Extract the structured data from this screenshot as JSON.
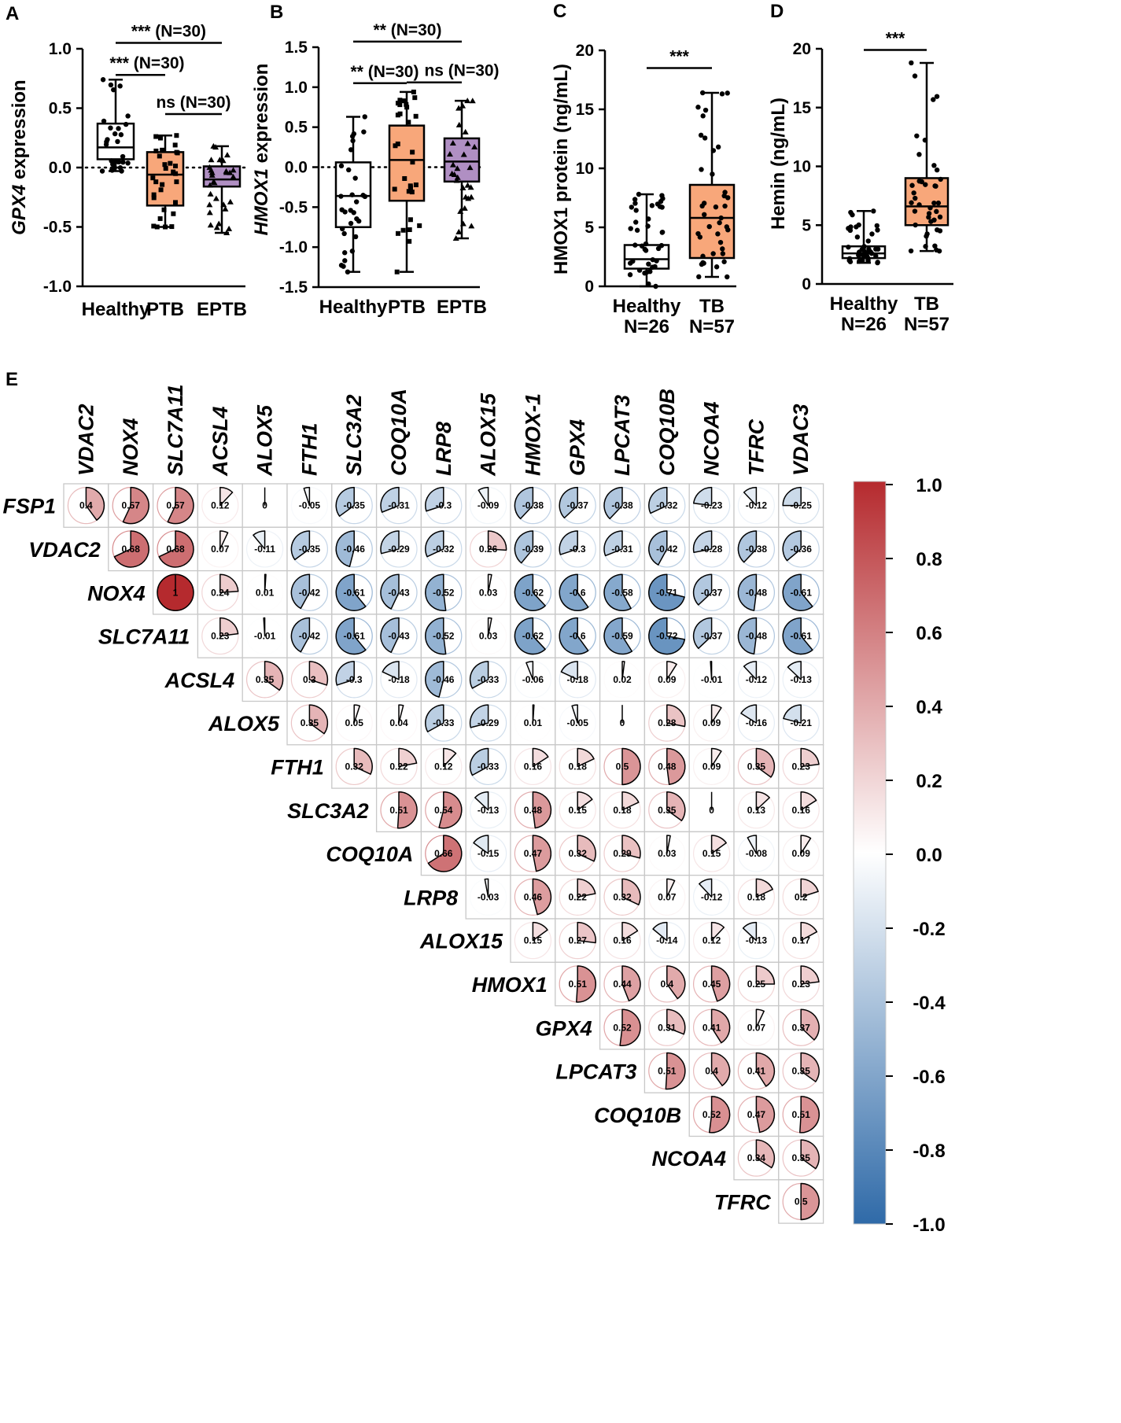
{
  "chart_data": [
    {
      "id": "A",
      "panel_label": "A",
      "type": "box",
      "ylabel_gene": "GPX4",
      "ylabel_rest": " expression",
      "categories": [
        "Healthy",
        "PTB",
        "EPTB"
      ],
      "ylim": [
        -1.0,
        1.0
      ],
      "yticks": [
        {
          "v": 1.0,
          "t": "1.0"
        },
        {
          "v": 0.5,
          "t": "0.5"
        },
        {
          "v": 0.0,
          "t": "0.0"
        },
        {
          "v": -0.5,
          "t": "-0.5"
        },
        {
          "v": -1.0,
          "t": "-1.0"
        }
      ],
      "ref_line": 0,
      "boxes": [
        {
          "min": -0.03,
          "q1": 0.07,
          "median": 0.17,
          "q3": 0.37,
          "max": 0.74,
          "color": "#ffffff",
          "marker": "circle"
        },
        {
          "min": -0.5,
          "q1": -0.32,
          "median": -0.06,
          "q3": 0.13,
          "max": 0.27,
          "color": "#f8a77a",
          "marker": "square"
        },
        {
          "min": -0.55,
          "q1": -0.16,
          "median": -0.1,
          "q3": 0.01,
          "max": 0.18,
          "color": "#b08fc3",
          "marker": "triangle"
        }
      ],
      "brackets": [
        {
          "from": 0,
          "to": 2,
          "y": 1.05,
          "label": "*** (N=30)"
        },
        {
          "from": 0,
          "to": 1,
          "y": 0.78,
          "label": "*** (N=30)"
        },
        {
          "from": 1,
          "to": 2,
          "y": 0.45,
          "label": "ns (N=30)"
        }
      ]
    },
    {
      "id": "B",
      "panel_label": "B",
      "type": "box",
      "ylabel_gene": "HMOX1",
      "ylabel_rest": " expression",
      "categories": [
        "Healthy",
        "PTB",
        "EPTB"
      ],
      "ylim": [
        -1.5,
        1.5
      ],
      "yticks": [
        {
          "v": 1.5,
          "t": "1.5"
        },
        {
          "v": 1.0,
          "t": "1.0"
        },
        {
          "v": 0.5,
          "t": "0.5"
        },
        {
          "v": 0.0,
          "t": "0.0"
        },
        {
          "v": -0.5,
          "t": "-0.5"
        },
        {
          "v": -1.0,
          "t": "-1.0"
        },
        {
          "v": -1.5,
          "t": "-1.5"
        }
      ],
      "ref_line": 0,
      "boxes": [
        {
          "min": -1.31,
          "q1": -0.75,
          "median": -0.36,
          "q3": 0.06,
          "max": 0.63,
          "color": "#ffffff",
          "marker": "circle"
        },
        {
          "min": -1.31,
          "q1": -0.42,
          "median": 0.09,
          "q3": 0.52,
          "max": 0.94,
          "color": "#f8a77a",
          "marker": "square"
        },
        {
          "min": -0.89,
          "q1": -0.18,
          "median": 0.07,
          "q3": 0.36,
          "max": 0.83,
          "color": "#b08fc3",
          "marker": "triangle"
        }
      ],
      "brackets": [
        {
          "from": 0,
          "to": 2,
          "y": 1.57,
          "label": "** (N=30)"
        },
        {
          "from": 0,
          "to": 1,
          "y": 1.05,
          "label": "** (N=30)"
        },
        {
          "from": 1,
          "to": 2,
          "y": 1.06,
          "label": "ns (N=30)"
        }
      ]
    },
    {
      "id": "C",
      "panel_label": "C",
      "type": "box",
      "ylabel": "HMOX1 protein  (ng/mL)",
      "categories": [
        "Healthy",
        "TB"
      ],
      "category_n": [
        "N=26",
        "N=57"
      ],
      "ylim": [
        0,
        20
      ],
      "yticks": [
        {
          "v": 20,
          "t": "20"
        },
        {
          "v": 15,
          "t": "15"
        },
        {
          "v": 10,
          "t": "10"
        },
        {
          "v": 5,
          "t": "5"
        },
        {
          "v": 0,
          "t": "0"
        }
      ],
      "boxes": [
        {
          "min": 0.0,
          "q1": 1.5,
          "median": 2.3,
          "q3": 3.5,
          "max": 7.8,
          "color": "#ffffff",
          "marker": "circle"
        },
        {
          "min": 0.8,
          "q1": 2.4,
          "median": 5.8,
          "q3": 8.6,
          "max": 16.4,
          "color": "#f8a77a",
          "marker": "circle"
        }
      ],
      "brackets": [
        {
          "from": 0,
          "to": 1,
          "y": 18.5,
          "label": "***",
          "flat": true
        }
      ]
    },
    {
      "id": "D",
      "panel_label": "D",
      "type": "box",
      "ylabel": "Hemin  (ng/mL)",
      "categories": [
        "Healthy",
        "TB"
      ],
      "category_n": [
        "N=26",
        "N=57"
      ],
      "ylim": [
        0,
        20
      ],
      "yticks": [
        {
          "v": 20,
          "t": "20"
        },
        {
          "v": 15,
          "t": "15"
        },
        {
          "v": 10,
          "t": "10"
        },
        {
          "v": 5,
          "t": "5"
        },
        {
          "v": 0,
          "t": "0"
        }
      ],
      "boxes": [
        {
          "min": 1.8,
          "q1": 2.2,
          "median": 2.6,
          "q3": 3.2,
          "max": 6.2,
          "color": "#ffffff",
          "marker": "circle"
        },
        {
          "min": 2.8,
          "q1": 5.0,
          "median": 6.6,
          "q3": 9.0,
          "max": 18.8,
          "color": "#f8a77a",
          "marker": "circle"
        }
      ],
      "brackets": [
        {
          "from": 0,
          "to": 1,
          "y": 19.9,
          "label": "***",
          "flat": true
        }
      ]
    },
    {
      "id": "E",
      "panel_label": "E",
      "type": "heatmap",
      "col_labels": [
        "VDAC2",
        "NOX4",
        "SLC7A11",
        "ACSL4",
        "ALOX5",
        "FTH1",
        "SLC3A2",
        "COQ10A",
        "LRP8",
        "ALOX15",
        "HMOX-1",
        "GPX4",
        "LPCAT3",
        "COQ10B",
        "NCOA4",
        "TFRC",
        "VDAC3"
      ],
      "row_labels": [
        "FSP1",
        "VDAC2",
        "NOX4",
        "SLC7A11",
        "ACSL4",
        "ALOX5",
        "FTH1",
        "SLC3A2",
        "COQ10A",
        "LRP8",
        "ALOX15",
        "HMOX1",
        "GPX4",
        "LPCAT3",
        "COQ10B",
        "NCOA4",
        "TFRC"
      ],
      "values": [
        [
          "0.4",
          "0.57",
          "0.57",
          "0.12",
          "0",
          "-0.05",
          "-0.35",
          "-0.31",
          "-0.3",
          "-0.09",
          "-0.38",
          "-0.37",
          "-0.38",
          "-0.32",
          "-0.23",
          "-0.12",
          "-0.25"
        ],
        [
          "0.68",
          "0.68",
          "0.07",
          "-0.11",
          "-0.35",
          "-0.46",
          "-0.29",
          "-0.32",
          "0.26",
          "-0.39",
          "-0.3",
          "-0.31",
          "-0.42",
          "-0.28",
          "-0.38",
          "-0.36"
        ],
        [
          "1",
          "0.24",
          "0.01",
          "-0.42",
          "-0.61",
          "-0.43",
          "-0.52",
          "0.03",
          "-0.62",
          "-0.6",
          "-0.58",
          "-0.71",
          "-0.37",
          "-0.48",
          "-0.61"
        ],
        [
          "0.23",
          "-0.01",
          "-0.42",
          "-0.61",
          "-0.43",
          "-0.52",
          "0.03",
          "-0.62",
          "-0.6",
          "-0.59",
          "-0.72",
          "-0.37",
          "-0.48",
          "-0.61"
        ],
        [
          "0.35",
          "0.3",
          "-0.3",
          "-0.18",
          "-0.46",
          "-0.33",
          "-0.06",
          "-0.18",
          "0.02",
          "0.09",
          "-0.01",
          "-0.12",
          "-0.13"
        ],
        [
          "0.35",
          "0.05",
          "0.04",
          "-0.33",
          "-0.29",
          "0.01",
          "-0.05",
          "0",
          "0.28",
          "0.09",
          "-0.16",
          "-0.21"
        ],
        [
          "0.32",
          "0.22",
          "0.12",
          "-0.33",
          "0.16",
          "0.18",
          "0.5",
          "0.48",
          "0.09",
          "0.35",
          "0.23"
        ],
        [
          "0.51",
          "0.54",
          "-0.13",
          "0.48",
          "0.15",
          "0.18",
          "0.35",
          "0",
          "0.13",
          "0.16"
        ],
        [
          "0.66",
          "-0.15",
          "0.47",
          "0.32",
          "0.29",
          "0.03",
          "0.15",
          "-0.08",
          "0.09"
        ],
        [
          "-0.03",
          "0.46",
          "0.22",
          "0.32",
          "0.07",
          "-0.12",
          "0.18",
          "0.2"
        ],
        [
          "0.15",
          "0.27",
          "0.16",
          "-0.14",
          "0.12",
          "-0.13",
          "0.17"
        ],
        [
          "0.51",
          "0.44",
          "0.4",
          "0.45",
          "0.25",
          "0.23"
        ],
        [
          "0.52",
          "0.31",
          "0.41",
          "0.07",
          "0.37"
        ],
        [
          "0.51",
          "0.4",
          "0.41",
          "0.35"
        ],
        [
          "0.52",
          "0.47",
          "0.51"
        ],
        [
          "0.34",
          "0.35"
        ],
        [
          "0.5"
        ]
      ],
      "colorbar": {
        "range": [
          -1.0,
          1.0
        ],
        "ticks": [
          "1.0",
          "0.8",
          "0.6",
          "0.4",
          "0.2",
          "0.0",
          "-0.2",
          "-0.4",
          "-0.6",
          "-0.8",
          "-1.0"
        ],
        "colors": {
          "negative": "#2f6aa8",
          "neutral": "#ffffff",
          "positive": "#b52a2e"
        }
      }
    }
  ]
}
